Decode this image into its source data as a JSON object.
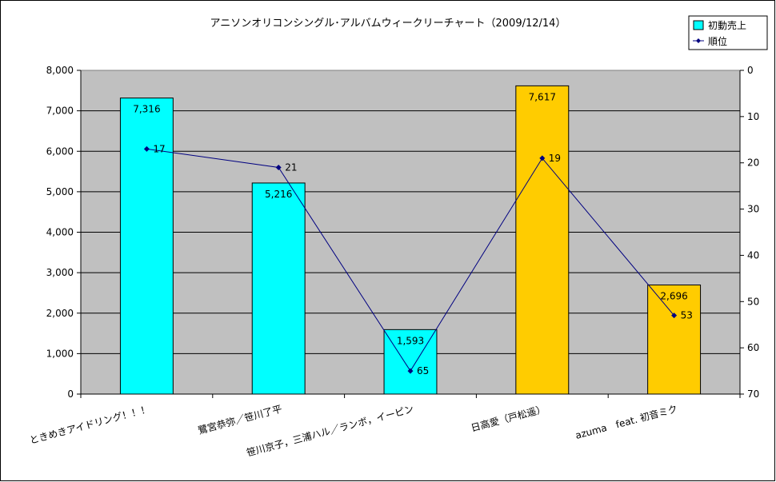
{
  "chart_data": {
    "type": "bar",
    "title": "アニソンオリコンシングル･アルバムウィークリーチャート（2009/12/14）",
    "categories": [
      "ときめきアイドリング！！！",
      "鷺宮恭弥／笹川了平",
      "笹川京子，三浦ハル／ランボ，イーピン",
      "日高愛（戸松遥）",
      "azuma　feat. 初音ミク"
    ],
    "series": [
      {
        "name": "初動売上",
        "kind": "bar",
        "axis": "left",
        "values": [
          7316,
          5216,
          1593,
          7617,
          2696
        ],
        "value_labels": [
          "7,316",
          "5,216",
          "1,593",
          "7,617",
          "2,696"
        ],
        "colors": [
          "#00ffff",
          "#00ffff",
          "#00ffff",
          "#ffcc00",
          "#ffcc00"
        ]
      },
      {
        "name": "順位",
        "kind": "line",
        "axis": "right",
        "values": [
          17,
          21,
          65,
          19,
          53
        ],
        "value_labels": [
          "17",
          "21",
          "65",
          "19",
          "53"
        ],
        "color": "#000080"
      }
    ],
    "y_left": {
      "range": [
        0,
        8000
      ],
      "ticks": [
        0,
        1000,
        2000,
        3000,
        4000,
        5000,
        6000,
        7000,
        8000
      ],
      "tick_labels": [
        "0",
        "1,000",
        "2,000",
        "3,000",
        "4,000",
        "5,000",
        "6,000",
        "7,000",
        "8,000"
      ]
    },
    "y_right": {
      "range": [
        0,
        70
      ],
      "reversed": true,
      "ticks": [
        0,
        10,
        20,
        30,
        40,
        50,
        60,
        70
      ],
      "tick_labels": [
        "0",
        "10",
        "20",
        "30",
        "40",
        "50",
        "60",
        "70"
      ]
    },
    "grid": true,
    "legend_position": "top-right",
    "colors": {
      "plot_background": "#c0c0c0",
      "chart_background": "#ffffff",
      "gridline": "#000000",
      "legend_bar_swatch": "#00ffff"
    }
  }
}
